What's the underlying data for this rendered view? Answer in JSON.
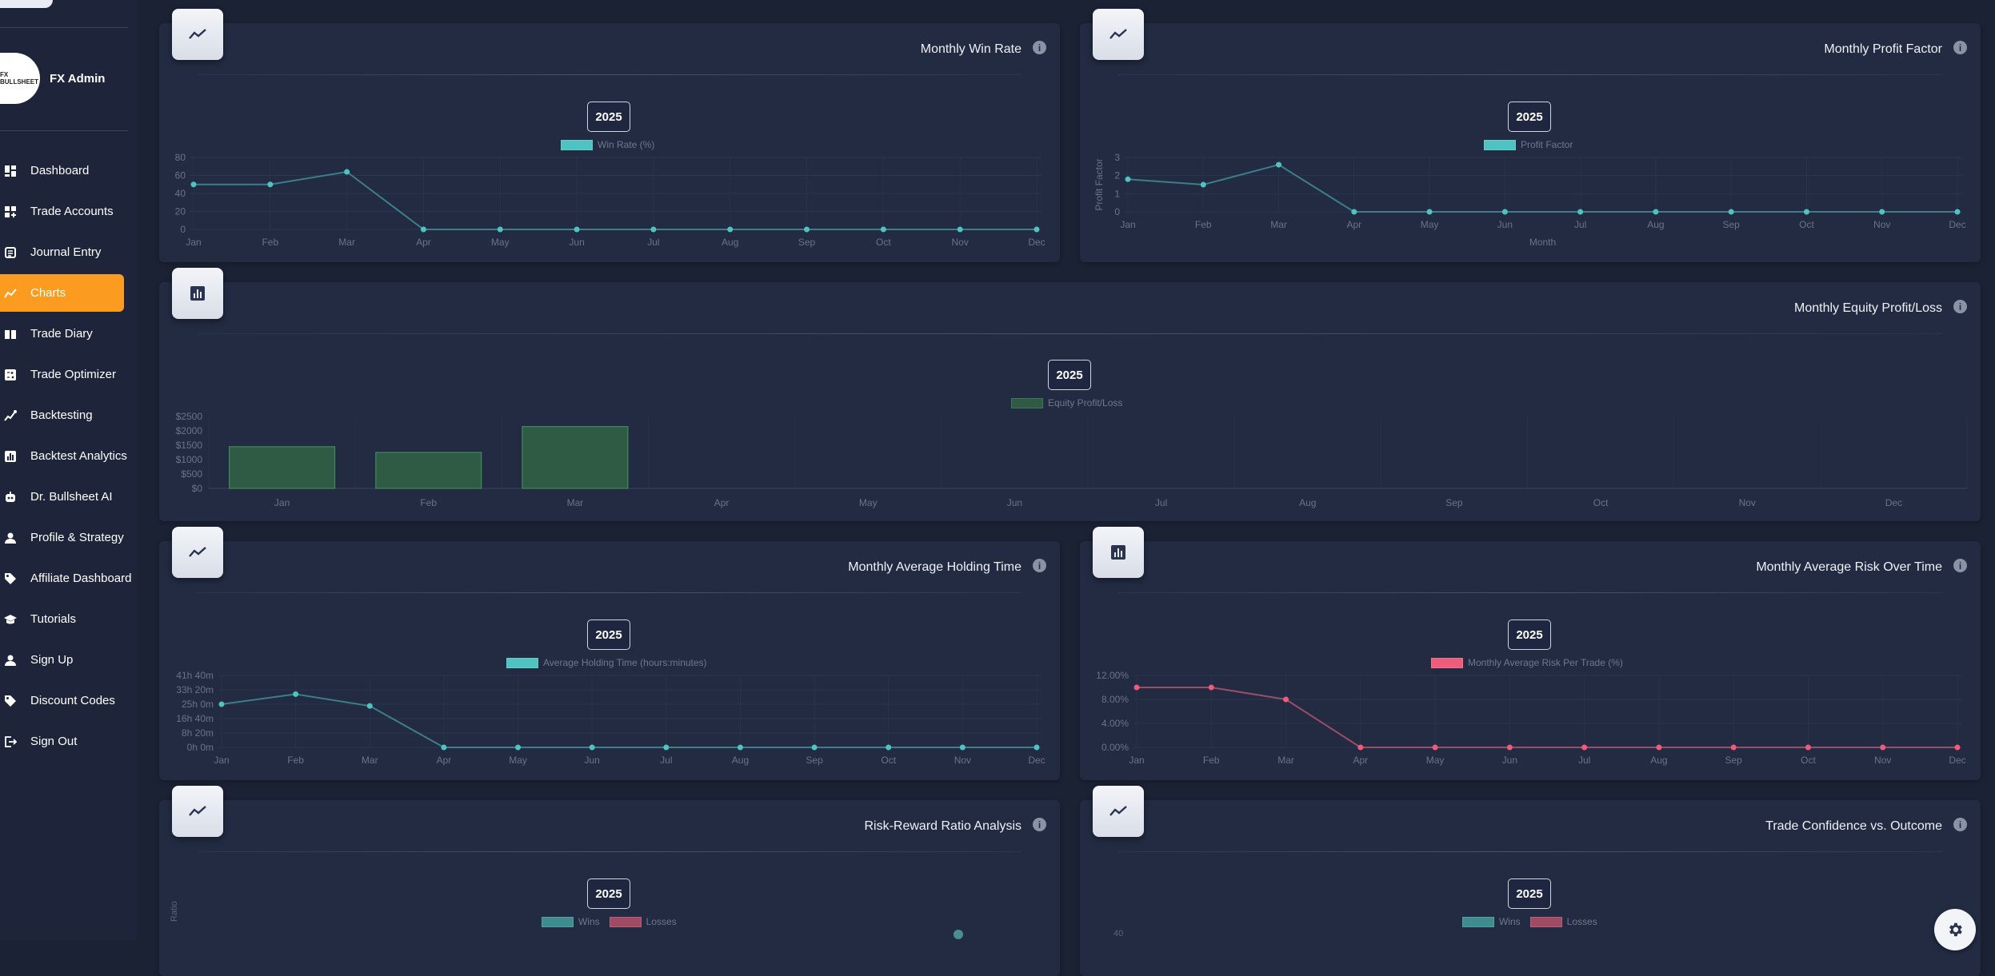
{
  "user": {
    "name": "FX Admin",
    "logo_text": "FX BULLSHEET"
  },
  "nav": [
    {
      "label": "Dashboard",
      "icon": "dashboard-icon",
      "active": false
    },
    {
      "label": "Trade Accounts",
      "icon": "accounts-icon",
      "active": false
    },
    {
      "label": "Journal Entry",
      "icon": "journal-icon",
      "active": false
    },
    {
      "label": "Charts",
      "icon": "charts-icon",
      "active": true
    },
    {
      "label": "Trade Diary",
      "icon": "book-icon",
      "active": false
    },
    {
      "label": "Trade Optimizer",
      "icon": "calculator-icon",
      "active": false
    },
    {
      "label": "Backtesting",
      "icon": "backtest-icon",
      "active": false
    },
    {
      "label": "Backtest Analytics",
      "icon": "analytics-icon",
      "active": false
    },
    {
      "label": "Dr. Bullsheet AI",
      "icon": "robot-icon",
      "active": false
    },
    {
      "label": "Profile & Strategy",
      "icon": "person-icon",
      "active": false
    },
    {
      "label": "Affiliate Dashboard",
      "icon": "tag-icon",
      "active": false
    },
    {
      "label": "Tutorials",
      "icon": "school-icon",
      "active": false
    },
    {
      "label": "Sign Up",
      "icon": "person-add-icon",
      "active": false
    },
    {
      "label": "Discount Codes",
      "icon": "tag-icon",
      "active": false
    },
    {
      "label": "Sign Out",
      "icon": "logout-icon",
      "active": false
    }
  ],
  "months": [
    "Jan",
    "Feb",
    "Mar",
    "Apr",
    "May",
    "Jun",
    "Jul",
    "Aug",
    "Sep",
    "Oct",
    "Nov",
    "Dec"
  ],
  "colors": {
    "teal": "#4fc3c1",
    "red": "#ef5b7b",
    "green": "#2f5a43",
    "accent": "#fb9b1f"
  },
  "cards": {
    "win_rate": {
      "title": "Monthly Win Rate",
      "year": "2025",
      "legend": "Win Rate (%)",
      "icon": "line-chart-icon"
    },
    "profit_factor": {
      "title": "Monthly Profit Factor",
      "year": "2025",
      "legend": "Profit Factor",
      "icon": "line-chart-icon",
      "ylabel": "Profit Factor",
      "xlabel": "Month"
    },
    "equity": {
      "title": "Monthly Equity Profit/Loss",
      "year": "2025",
      "legend": "Equity Profit/Loss",
      "icon": "bar-chart-icon"
    },
    "holding": {
      "title": "Monthly Average Holding Time",
      "year": "2025",
      "legend": "Average Holding Time (hours:minutes)",
      "icon": "line-chart-icon"
    },
    "risk": {
      "title": "Monthly Average Risk Over Time",
      "year": "2025",
      "legend": "Monthly Average Risk Per Trade (%)",
      "icon": "bar-chart-icon"
    },
    "rr": {
      "title": "Risk-Reward Ratio Analysis",
      "year": "2025",
      "legend_wins": "Wins",
      "legend_losses": "Losses",
      "icon": "line-chart-icon",
      "ylabel_partial": "Ratio"
    },
    "confidence": {
      "title": "Trade Confidence vs. Outcome",
      "year": "2025",
      "legend_wins": "Wins",
      "legend_losses": "Losses",
      "icon": "line-chart-icon",
      "ytick_partial": "40"
    }
  },
  "chart_data": [
    {
      "type": "line",
      "name": "win_rate",
      "categories": [
        "Jan",
        "Feb",
        "Mar",
        "Apr",
        "May",
        "Jun",
        "Jul",
        "Aug",
        "Sep",
        "Oct",
        "Nov",
        "Dec"
      ],
      "series": [
        {
          "name": "Win Rate (%)",
          "values": [
            50,
            50,
            64,
            0,
            0,
            0,
            0,
            0,
            0,
            0,
            0,
            0
          ]
        }
      ],
      "ylim": [
        0,
        80
      ],
      "yticks": [
        "0",
        "20",
        "40",
        "60",
        "80"
      ]
    },
    {
      "type": "line",
      "name": "profit_factor",
      "categories": [
        "Jan",
        "Feb",
        "Mar",
        "Apr",
        "May",
        "Jun",
        "Jul",
        "Aug",
        "Sep",
        "Oct",
        "Nov",
        "Dec"
      ],
      "series": [
        {
          "name": "Profit Factor",
          "values": [
            1.8,
            1.5,
            2.6,
            0,
            0,
            0,
            0,
            0,
            0,
            0,
            0,
            0
          ]
        }
      ],
      "ylim": [
        0,
        3
      ],
      "yticks": [
        "0",
        "1",
        "2",
        "3"
      ],
      "xlabel": "Month",
      "ylabel": "Profit Factor"
    },
    {
      "type": "bar",
      "name": "equity",
      "categories": [
        "Jan",
        "Feb",
        "Mar",
        "Apr",
        "May",
        "Jun",
        "Jul",
        "Aug",
        "Sep",
        "Oct",
        "Nov",
        "Dec"
      ],
      "series": [
        {
          "name": "Equity Profit/Loss",
          "values": [
            1450,
            1250,
            2150,
            0,
            0,
            0,
            0,
            0,
            0,
            0,
            0,
            0
          ]
        }
      ],
      "ylim": [
        0,
        2500
      ],
      "yticks": [
        "$0",
        "$500",
        "$1000",
        "$1500",
        "$2000",
        "$2500"
      ]
    },
    {
      "type": "line",
      "name": "holding",
      "categories": [
        "Jan",
        "Feb",
        "Mar",
        "Apr",
        "May",
        "Jun",
        "Jul",
        "Aug",
        "Sep",
        "Oct",
        "Nov",
        "Dec"
      ],
      "series": [
        {
          "name": "Average Holding Time (hours:minutes)",
          "values": [
            1500,
            1850,
            1440,
            0,
            0,
            0,
            0,
            0,
            0,
            0,
            0,
            0
          ]
        }
      ],
      "ylim": [
        0,
        2500
      ],
      "yticks": [
        "0h 0m",
        "8h 20m",
        "16h 40m",
        "25h 0m",
        "33h 20m",
        "41h 40m"
      ]
    },
    {
      "type": "line",
      "name": "risk",
      "categories": [
        "Jan",
        "Feb",
        "Mar",
        "Apr",
        "May",
        "Jun",
        "Jul",
        "Aug",
        "Sep",
        "Oct",
        "Nov",
        "Dec"
      ],
      "series": [
        {
          "name": "Monthly Average Risk Per Trade (%)",
          "values": [
            10,
            10,
            8,
            0,
            0,
            0,
            0,
            0,
            0,
            0,
            0,
            0
          ]
        }
      ],
      "ylim": [
        0,
        12
      ],
      "yticks": [
        "0.00%",
        "4.00%",
        "8.00%",
        "12.00%"
      ]
    }
  ]
}
